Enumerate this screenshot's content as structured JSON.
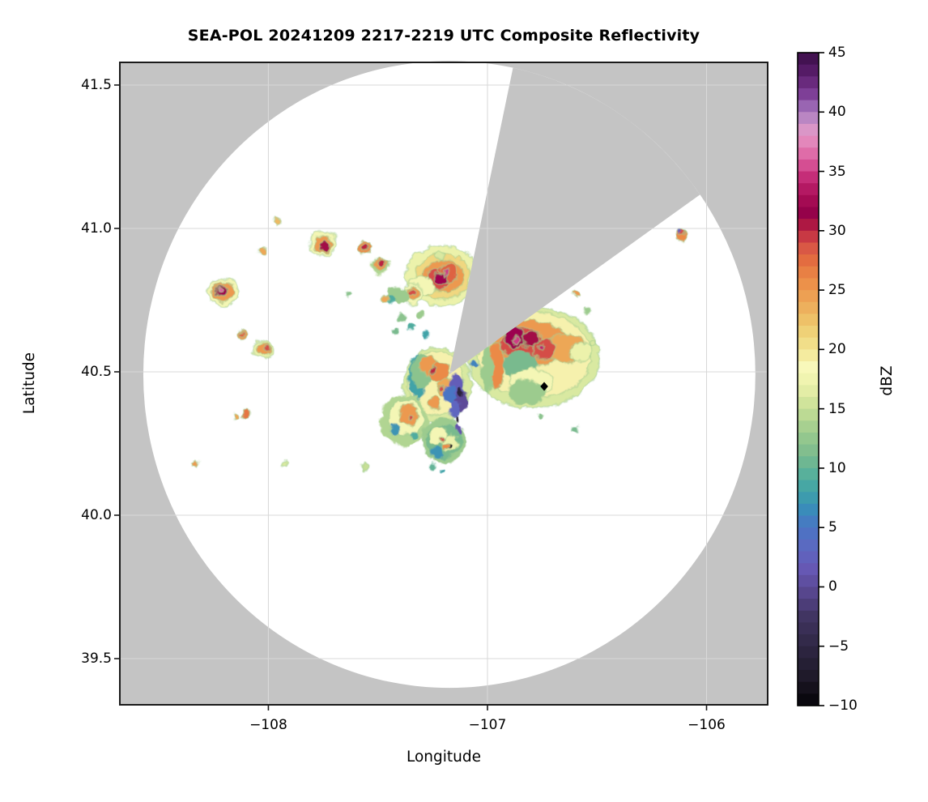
{
  "title": "SEA-POL 20241209 2217-2219 UTC Composite Reflectivity",
  "axes": {
    "xlabel": "Longitude",
    "ylabel": "Latitude",
    "lon_range": [
      -108.678,
      -105.721
    ],
    "lat_range": [
      39.339,
      41.579
    ],
    "x_ticks": [
      {
        "label": "−108",
        "value": -108
      },
      {
        "label": "−107",
        "value": -107
      },
      {
        "label": "−106",
        "value": -106
      }
    ],
    "y_ticks": [
      {
        "label": "41.5",
        "value": 41.5
      },
      {
        "label": "41.0",
        "value": 41.0
      },
      {
        "label": "40.5",
        "value": 40.5
      },
      {
        "label": "40.0",
        "value": 40.0
      },
      {
        "label": "39.5",
        "value": 39.5
      }
    ]
  },
  "colorbar": {
    "label": "dBZ",
    "range": [
      -10,
      45
    ],
    "step": 1,
    "ticks": [
      {
        "label": "45",
        "value": 45
      },
      {
        "label": "40",
        "value": 40
      },
      {
        "label": "35",
        "value": 35
      },
      {
        "label": "30",
        "value": 30
      },
      {
        "label": "25",
        "value": 25
      },
      {
        "label": "20",
        "value": 20
      },
      {
        "label": "15",
        "value": 15
      },
      {
        "label": "10",
        "value": 10
      },
      {
        "label": "5",
        "value": 5
      },
      {
        "label": "0",
        "value": 0
      },
      {
        "label": "−5",
        "value": -5
      },
      {
        "label": "−10",
        "value": -10
      }
    ]
  },
  "colors": {
    "background": "#ffffff",
    "no_data_gray": "#c4c4c4",
    "grid": "#d8d8d8",
    "spine": "#1a1a1a",
    "marker": "#000000"
  },
  "chart_data": {
    "type": "heatmap",
    "subtype": "radar_composite_reflectivity_ppi",
    "title": "SEA-POL 20241209 2217-2219 UTC Composite Reflectivity",
    "xlabel": "Longitude",
    "ylabel": "Latitude",
    "value_label": "dBZ",
    "value_range": [
      -10,
      45
    ],
    "grid": true,
    "radar": {
      "center_lon": -107.174,
      "center_lat": 40.491,
      "range_lon_deg": 1.397,
      "range_lat_deg": 1.093,
      "blocked_sector_azimuth_deg": [
        12,
        55
      ],
      "site_marker": {
        "lon": -106.741,
        "lat": 40.449,
        "shape": "diamond"
      }
    },
    "colormap_anchors": [
      [
        -10,
        "#050408"
      ],
      [
        -7.5,
        "#1f1a2a"
      ],
      [
        -5,
        "#2f2744"
      ],
      [
        -2.5,
        "#413562"
      ],
      [
        0,
        "#5c4a98"
      ],
      [
        1.5,
        "#6658b4"
      ],
      [
        3,
        "#5f66c0"
      ],
      [
        5,
        "#4a74c4"
      ],
      [
        6.5,
        "#3a8cba"
      ],
      [
        8,
        "#3fa3a8"
      ],
      [
        9.5,
        "#58b09b"
      ],
      [
        11,
        "#79ba8e"
      ],
      [
        13,
        "#9ccb8e"
      ],
      [
        15,
        "#c6df96"
      ],
      [
        17,
        "#ecf2ab"
      ],
      [
        18.5,
        "#f8f8ba"
      ],
      [
        20,
        "#f2e492"
      ],
      [
        22,
        "#eeca6e"
      ],
      [
        24,
        "#eda757"
      ],
      [
        26,
        "#eb8a46"
      ],
      [
        27.5,
        "#e36c40"
      ],
      [
        29,
        "#d44e47"
      ],
      [
        30,
        "#bb2340"
      ],
      [
        31.5,
        "#95024a"
      ],
      [
        33,
        "#ab0f58"
      ],
      [
        34.5,
        "#c52d78"
      ],
      [
        36,
        "#dd5f9f"
      ],
      [
        37.5,
        "#e387bb"
      ],
      [
        38.75,
        "#d89aca"
      ],
      [
        40,
        "#a678bf"
      ],
      [
        41.5,
        "#7e3f97"
      ],
      [
        43,
        "#5e1f70"
      ],
      [
        45,
        "#3a0d46"
      ]
    ],
    "echo_fields": [
      "lon",
      "lat",
      "rx_deg",
      "ry_deg",
      "dbz"
    ],
    "echoes": [
      [
        -107.21,
        40.835,
        0.165,
        0.105,
        17
      ],
      [
        -107.205,
        40.833,
        0.125,
        0.08,
        21
      ],
      [
        -107.2,
        40.832,
        0.09,
        0.058,
        25
      ],
      [
        -107.225,
        40.82,
        0.05,
        0.038,
        29
      ],
      [
        -107.18,
        40.845,
        0.042,
        0.032,
        28
      ],
      [
        -107.21,
        40.827,
        0.028,
        0.02,
        32
      ],
      [
        -107.19,
        40.848,
        0.014,
        0.012,
        35
      ],
      [
        -107.215,
        40.905,
        0.018,
        0.013,
        16
      ],
      [
        -107.3,
        40.8,
        0.055,
        0.035,
        18
      ],
      [
        -107.34,
        40.77,
        0.05,
        0.036,
        18
      ],
      [
        -107.338,
        40.772,
        0.032,
        0.024,
        25
      ],
      [
        -107.342,
        40.775,
        0.016,
        0.013,
        29
      ],
      [
        -107.41,
        40.768,
        0.05,
        0.03,
        13
      ],
      [
        -107.44,
        40.752,
        0.02,
        0.015,
        9
      ],
      [
        -108.205,
        40.777,
        0.068,
        0.048,
        18
      ],
      [
        -108.206,
        40.779,
        0.048,
        0.035,
        25
      ],
      [
        -108.215,
        40.784,
        0.026,
        0.021,
        32
      ],
      [
        -108.22,
        40.788,
        0.011,
        0.01,
        36
      ],
      [
        -107.752,
        40.948,
        0.06,
        0.042,
        18
      ],
      [
        -107.75,
        40.946,
        0.042,
        0.03,
        25
      ],
      [
        -107.742,
        40.94,
        0.021,
        0.017,
        31
      ],
      [
        -107.562,
        40.931,
        0.032,
        0.024,
        26
      ],
      [
        -107.562,
        40.932,
        0.017,
        0.013,
        30
      ],
      [
        -107.49,
        40.867,
        0.042,
        0.032,
        14
      ],
      [
        -107.488,
        40.873,
        0.032,
        0.024,
        25
      ],
      [
        -107.484,
        40.878,
        0.017,
        0.013,
        30
      ],
      [
        -108.024,
        40.921,
        0.019,
        0.014,
        24
      ],
      [
        -107.961,
        41.025,
        0.016,
        0.012,
        23
      ],
      [
        -107.466,
        40.754,
        0.017,
        0.013,
        24
      ],
      [
        -107.636,
        40.771,
        0.011,
        0.008,
        12
      ],
      [
        -108.116,
        40.633,
        0.021,
        0.016,
        25
      ],
      [
        -108.118,
        40.635,
        0.01,
        0.008,
        28
      ],
      [
        -108.025,
        40.578,
        0.044,
        0.032,
        17
      ],
      [
        -108.022,
        40.58,
        0.031,
        0.023,
        25
      ],
      [
        -108.012,
        40.585,
        0.013,
        0.01,
        29
      ],
      [
        -108.102,
        40.356,
        0.021,
        0.017,
        27
      ],
      [
        -108.148,
        40.342,
        0.015,
        0.011,
        24
      ],
      [
        -108.335,
        40.181,
        0.013,
        0.01,
        25
      ],
      [
        -107.928,
        40.181,
        0.013,
        0.01,
        16
      ],
      [
        -106.113,
        40.975,
        0.026,
        0.021,
        26
      ],
      [
        -106.11,
        40.985,
        0.014,
        0.011,
        29
      ],
      [
        -106.12,
        40.99,
        0.007,
        0.006,
        2
      ],
      [
        -106.593,
        40.774,
        0.017,
        0.013,
        25
      ],
      [
        -106.79,
        40.55,
        0.3,
        0.175,
        16
      ],
      [
        -106.785,
        40.557,
        0.26,
        0.15,
        19
      ],
      [
        -106.8,
        40.6,
        0.17,
        0.078,
        25
      ],
      [
        -106.64,
        40.582,
        0.09,
        0.05,
        24
      ],
      [
        -106.575,
        40.57,
        0.05,
        0.034,
        17
      ],
      [
        -106.84,
        40.6,
        0.1,
        0.058,
        29
      ],
      [
        -106.878,
        40.619,
        0.046,
        0.036,
        32
      ],
      [
        -106.8,
        40.615,
        0.04,
        0.03,
        31
      ],
      [
        -106.741,
        40.577,
        0.05,
        0.036,
        29
      ],
      [
        -106.87,
        40.61,
        0.016,
        0.013,
        35
      ],
      [
        -106.758,
        40.585,
        0.013,
        0.011,
        34
      ],
      [
        -106.96,
        40.52,
        0.035,
        0.082,
        26
      ],
      [
        -107.0,
        40.515,
        0.026,
        0.09,
        13
      ],
      [
        -106.85,
        40.525,
        0.078,
        0.05,
        11
      ],
      [
        -106.845,
        40.462,
        0.052,
        0.032,
        7
      ],
      [
        -106.8,
        40.46,
        0.1,
        0.05,
        18
      ],
      [
        -106.82,
        40.43,
        0.09,
        0.042,
        13
      ],
      [
        -106.76,
        40.345,
        0.013,
        0.01,
        12
      ],
      [
        -106.6,
        40.3,
        0.016,
        0.012,
        11
      ],
      [
        -106.52,
        40.6,
        0.013,
        0.01,
        16
      ],
      [
        -106.545,
        40.71,
        0.015,
        0.011,
        13
      ],
      [
        -107.39,
        40.69,
        0.02,
        0.014,
        12
      ],
      [
        -107.35,
        40.66,
        0.017,
        0.012,
        9
      ],
      [
        -107.31,
        40.7,
        0.015,
        0.011,
        13
      ],
      [
        -107.28,
        40.63,
        0.016,
        0.012,
        8
      ],
      [
        -107.42,
        40.64,
        0.013,
        0.01,
        11
      ],
      [
        -107.23,
        40.455,
        0.155,
        0.13,
        16
      ],
      [
        -107.235,
        40.46,
        0.13,
        0.11,
        19
      ],
      [
        -107.32,
        40.48,
        0.04,
        0.08,
        8
      ],
      [
        -107.3,
        40.5,
        0.05,
        0.06,
        12
      ],
      [
        -107.27,
        40.52,
        0.04,
        0.03,
        25
      ],
      [
        -107.22,
        40.5,
        0.045,
        0.035,
        26
      ],
      [
        -107.19,
        40.445,
        0.04,
        0.03,
        24
      ],
      [
        -107.24,
        40.39,
        0.03,
        0.025,
        25
      ],
      [
        -107.25,
        40.51,
        0.013,
        0.01,
        30
      ],
      [
        -107.21,
        40.44,
        0.013,
        0.01,
        29
      ],
      [
        -107.14,
        40.45,
        0.035,
        0.042,
        2
      ],
      [
        -107.12,
        40.4,
        0.03,
        0.036,
        0
      ],
      [
        -107.15,
        40.37,
        0.025,
        0.03,
        3
      ],
      [
        -107.17,
        40.42,
        0.025,
        0.032,
        5
      ],
      [
        -107.125,
        40.43,
        0.011,
        0.013,
        -6
      ],
      [
        -107.135,
        40.335,
        0.009,
        0.011,
        -7
      ],
      [
        -107.38,
        40.33,
        0.11,
        0.09,
        14
      ],
      [
        -107.37,
        40.34,
        0.08,
        0.062,
        18
      ],
      [
        -107.36,
        40.35,
        0.046,
        0.036,
        25
      ],
      [
        -107.35,
        40.345,
        0.013,
        0.011,
        29
      ],
      [
        -107.42,
        40.3,
        0.02,
        0.02,
        7
      ],
      [
        -107.33,
        40.28,
        0.018,
        0.015,
        9
      ],
      [
        -107.2,
        40.26,
        0.1,
        0.08,
        13
      ],
      [
        -107.2,
        40.258,
        0.08,
        0.06,
        11
      ],
      [
        -107.22,
        40.28,
        0.042,
        0.03,
        18
      ],
      [
        -107.17,
        40.25,
        0.036,
        0.028,
        17
      ],
      [
        -107.23,
        40.22,
        0.03,
        0.025,
        7
      ],
      [
        -107.19,
        40.24,
        0.013,
        0.01,
        26
      ],
      [
        -107.21,
        40.265,
        0.01,
        0.008,
        29
      ],
      [
        -107.13,
        40.3,
        0.013,
        0.02,
        1
      ],
      [
        -107.25,
        40.17,
        0.016,
        0.012,
        10
      ],
      [
        -107.21,
        40.152,
        0.009,
        0.007,
        8
      ],
      [
        -107.17,
        40.237,
        0.008,
        0.009,
        -8
      ],
      [
        -107.558,
        40.169,
        0.015,
        0.011,
        15
      ],
      [
        -107.063,
        40.525,
        0.019,
        0.012,
        6
      ]
    ]
  }
}
